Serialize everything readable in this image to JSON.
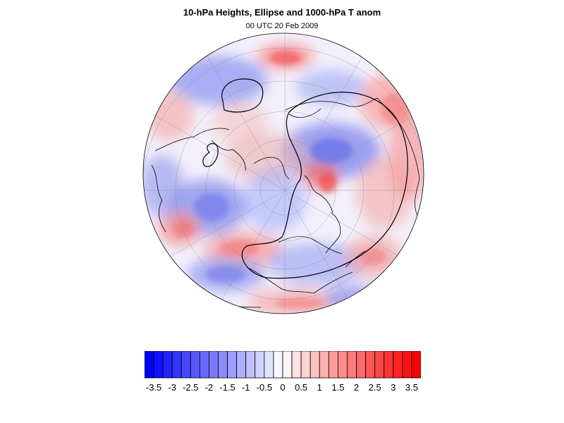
{
  "title": "10-hPa Heights, Ellipse and 1000-hPa T anom",
  "subtitle": "00 UTC 20 Feb 2009",
  "map": {
    "projection": "polar stereographic (north pole)",
    "contour_field": "10-hPa heights ellipse",
    "shaded_field": "1000-hPa T anom",
    "colors": {
      "negative_max": "#0000ff",
      "positive_max": "#ff0000",
      "neutral": "#ffffff",
      "coastline": "#000000",
      "grid": "#8c8c8c"
    }
  },
  "colorbar": {
    "levels": [
      -3.5,
      -3.25,
      -3,
      -2.75,
      -2.5,
      -2.25,
      -2,
      -1.75,
      -1.5,
      -1.25,
      -1,
      -0.75,
      -0.5,
      -0.25,
      0,
      0.25,
      0.5,
      0.75,
      1,
      1.25,
      1.5,
      1.75,
      2,
      2.25,
      2.5,
      2.75,
      3,
      3.25,
      3.5
    ],
    "tick_labels": [
      "-3.5",
      "-3",
      "-2.5",
      "-2",
      "-1.5",
      "-1",
      "-0.5",
      "0",
      "0.5",
      "1",
      "1.5",
      "2",
      "2.5",
      "3",
      "3.5"
    ]
  }
}
